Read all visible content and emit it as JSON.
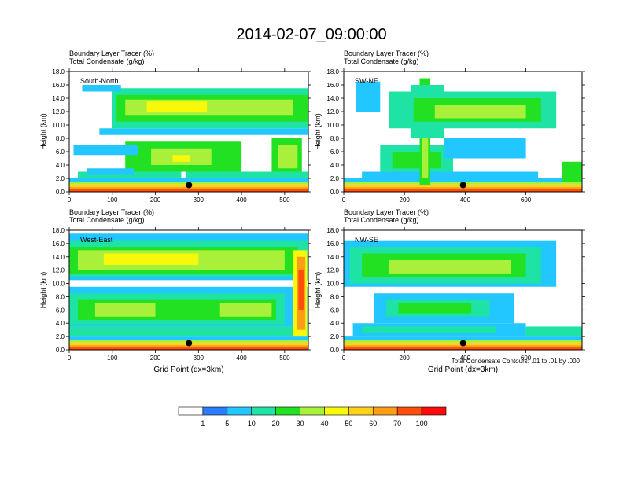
{
  "title": "2014-02-07_09:00:00",
  "chart_data": [
    {
      "type": "heatmap",
      "panel": "South-North",
      "line1": "Boundary Layer Tracer    (%)",
      "line2": "Total Condensate    (g/kg)",
      "ylabel": "Height (km)",
      "xlabel": "",
      "xlim": [
        0,
        555
      ],
      "ylim": [
        0,
        18
      ],
      "xticks": [
        "0",
        "100",
        "200",
        "300",
        "400",
        "500"
      ],
      "xtick_values": [
        0,
        100,
        200,
        300,
        400,
        500
      ],
      "yticks": [
        "0.0",
        "2.0",
        "4.0",
        "6.0",
        "8.0",
        "10.0",
        "12.0",
        "14.0",
        "16.0",
        "18.0"
      ],
      "marker": {
        "x": 278,
        "y": 1.0
      },
      "bands": [
        {
          "x0": 0,
          "x1": 555,
          "y0": 0.0,
          "y1": 0.35,
          "level": 9
        },
        {
          "x0": 0,
          "x1": 555,
          "y0": 0.35,
          "y1": 0.7,
          "level": 8
        },
        {
          "x0": 0,
          "x1": 555,
          "y0": 0.7,
          "y1": 1.1,
          "level": 7
        },
        {
          "x0": 0,
          "x1": 555,
          "y0": 1.1,
          "y1": 1.5,
          "level": 5
        },
        {
          "x0": 0,
          "x1": 555,
          "y0": 1.5,
          "y1": 2.0,
          "level": 2
        },
        {
          "x0": 20,
          "x1": 260,
          "y0": 2.0,
          "y1": 3.0,
          "level": 3
        },
        {
          "x0": 270,
          "x1": 555,
          "y0": 2.0,
          "y1": 3.0,
          "level": 3
        },
        {
          "x0": 130,
          "x1": 400,
          "y0": 3.0,
          "y1": 7.5,
          "level": 4
        },
        {
          "x0": 190,
          "x1": 330,
          "y0": 4.0,
          "y1": 6.5,
          "level": 5
        },
        {
          "x0": 240,
          "x1": 280,
          "y0": 4.5,
          "y1": 5.5,
          "level": 6
        },
        {
          "x0": 470,
          "x1": 540,
          "y0": 3.0,
          "y1": 8.0,
          "level": 4
        },
        {
          "x0": 485,
          "x1": 530,
          "y0": 3.5,
          "y1": 7.0,
          "level": 5
        },
        {
          "x0": 10,
          "x1": 160,
          "y0": 5.5,
          "y1": 7.0,
          "level": 2
        },
        {
          "x0": 40,
          "x1": 150,
          "y0": 2.5,
          "y1": 3.5,
          "level": 2
        },
        {
          "x0": 70,
          "x1": 555,
          "y0": 8.5,
          "y1": 9.5,
          "level": 2
        },
        {
          "x0": 100,
          "x1": 555,
          "y0": 9.5,
          "y1": 15.5,
          "level": 3
        },
        {
          "x0": 110,
          "x1": 555,
          "y0": 10.5,
          "y1": 14.5,
          "level": 4
        },
        {
          "x0": 130,
          "x1": 520,
          "y0": 11.5,
          "y1": 13.8,
          "level": 5
        },
        {
          "x0": 180,
          "x1": 320,
          "y0": 12.0,
          "y1": 13.5,
          "level": 6
        },
        {
          "x0": 30,
          "x1": 120,
          "y0": 15.0,
          "y1": 16.0,
          "level": 2
        }
      ]
    },
    {
      "type": "heatmap",
      "panel": "SW-NE",
      "line1": "Boundary Layer Tracer    (%)",
      "line2": "Total Condensate    (g/kg)",
      "ylabel": "Height (km)",
      "xlabel": "",
      "xlim": [
        0,
        785
      ],
      "ylim": [
        0,
        18
      ],
      "xticks": [
        "0",
        "200",
        "400",
        "600"
      ],
      "xtick_values": [
        0,
        200,
        400,
        600
      ],
      "yticks": [
        "0.0",
        "2.0",
        "4.0",
        "6.0",
        "8.0",
        "10.0",
        "12.0",
        "14.0",
        "16.0",
        "18.0"
      ],
      "marker": {
        "x": 393,
        "y": 1.0
      },
      "bands": [
        {
          "x0": 0,
          "x1": 785,
          "y0": 0.0,
          "y1": 0.35,
          "level": 9
        },
        {
          "x0": 0,
          "x1": 785,
          "y0": 0.35,
          "y1": 0.7,
          "level": 8
        },
        {
          "x0": 0,
          "x1": 785,
          "y0": 0.7,
          "y1": 1.1,
          "level": 7
        },
        {
          "x0": 0,
          "x1": 785,
          "y0": 1.1,
          "y1": 1.5,
          "level": 5
        },
        {
          "x0": 0,
          "x1": 785,
          "y0": 1.5,
          "y1": 2.0,
          "level": 2
        },
        {
          "x0": 60,
          "x1": 640,
          "y0": 2.0,
          "y1": 3.0,
          "level": 2
        },
        {
          "x0": 120,
          "x1": 360,
          "y0": 3.0,
          "y1": 7.0,
          "level": 3
        },
        {
          "x0": 160,
          "x1": 320,
          "y0": 3.5,
          "y1": 6.0,
          "level": 4
        },
        {
          "x0": 330,
          "x1": 600,
          "y0": 5.0,
          "y1": 8.0,
          "level": 2
        },
        {
          "x0": 250,
          "x1": 285,
          "y0": 1.0,
          "y1": 17.0,
          "level": 4
        },
        {
          "x0": 258,
          "x1": 278,
          "y0": 2.0,
          "y1": 16.0,
          "level": 5
        },
        {
          "x0": 220,
          "x1": 330,
          "y0": 8.0,
          "y1": 16.0,
          "level": 3
        },
        {
          "x0": 150,
          "x1": 700,
          "y0": 9.5,
          "y1": 15.0,
          "level": 3
        },
        {
          "x0": 230,
          "x1": 650,
          "y0": 10.5,
          "y1": 14.0,
          "level": 4
        },
        {
          "x0": 300,
          "x1": 600,
          "y0": 11.0,
          "y1": 13.0,
          "level": 5
        },
        {
          "x0": 40,
          "x1": 120,
          "y0": 12.0,
          "y1": 16.5,
          "level": 2
        },
        {
          "x0": 720,
          "x1": 785,
          "y0": 1.5,
          "y1": 4.5,
          "level": 4
        }
      ]
    },
    {
      "type": "heatmap",
      "panel": "West-East",
      "line1": "Boundary Layer Tracer    (%)",
      "line2": "Total Condensate    (g/kg)",
      "ylabel": "Height (km)",
      "xlabel": "Grid Point (dx=3km)",
      "xlim": [
        0,
        555
      ],
      "ylim": [
        0,
        18
      ],
      "xticks": [
        "0",
        "100",
        "200",
        "300",
        "400",
        "500"
      ],
      "xtick_values": [
        0,
        100,
        200,
        300,
        400,
        500
      ],
      "yticks": [
        "0.0",
        "2.0",
        "4.0",
        "6.0",
        "8.0",
        "10.0",
        "12.0",
        "14.0",
        "16.0",
        "18.0"
      ],
      "marker": {
        "x": 278,
        "y": 1.0
      },
      "bands": [
        {
          "x0": 0,
          "x1": 555,
          "y0": 0.0,
          "y1": 0.35,
          "level": 9
        },
        {
          "x0": 0,
          "x1": 555,
          "y0": 0.35,
          "y1": 0.7,
          "level": 8
        },
        {
          "x0": 0,
          "x1": 555,
          "y0": 0.7,
          "y1": 1.1,
          "level": 7
        },
        {
          "x0": 0,
          "x1": 555,
          "y0": 1.1,
          "y1": 1.5,
          "level": 5
        },
        {
          "x0": 0,
          "x1": 555,
          "y0": 1.5,
          "y1": 2.0,
          "level": 2
        },
        {
          "x0": 0,
          "x1": 555,
          "y0": 2.0,
          "y1": 3.5,
          "level": 3
        },
        {
          "x0": 0,
          "x1": 555,
          "y0": 3.5,
          "y1": 9.5,
          "level": 2
        },
        {
          "x0": 0,
          "x1": 500,
          "y0": 3.8,
          "y1": 8.5,
          "level": 3
        },
        {
          "x0": 20,
          "x1": 480,
          "y0": 4.5,
          "y1": 7.5,
          "level": 4
        },
        {
          "x0": 60,
          "x1": 200,
          "y0": 5.0,
          "y1": 7.0,
          "level": 5
        },
        {
          "x0": 350,
          "x1": 470,
          "y0": 5.0,
          "y1": 7.0,
          "level": 5
        },
        {
          "x0": 0,
          "x1": 555,
          "y0": 10.5,
          "y1": 17.5,
          "level": 2
        },
        {
          "x0": 0,
          "x1": 555,
          "y0": 11.0,
          "y1": 16.5,
          "level": 3
        },
        {
          "x0": 0,
          "x1": 530,
          "y0": 11.5,
          "y1": 15.5,
          "level": 4
        },
        {
          "x0": 20,
          "x1": 500,
          "y0": 12.0,
          "y1": 15.0,
          "level": 5
        },
        {
          "x0": 80,
          "x1": 300,
          "y0": 12.8,
          "y1": 14.5,
          "level": 6
        },
        {
          "x0": 520,
          "x1": 552,
          "y0": 2.0,
          "y1": 15.0,
          "level": 6
        },
        {
          "x0": 528,
          "x1": 548,
          "y0": 3.0,
          "y1": 14.0,
          "level": 8
        },
        {
          "x0": 532,
          "x1": 544,
          "y0": 6.0,
          "y1": 12.0,
          "level": 9
        }
      ]
    },
    {
      "type": "heatmap",
      "panel": "NW-SE",
      "line1": "Boundary Layer Tracer    (%)",
      "line2": "Total Condensate    (g/kg)",
      "ylabel": "Height (km)",
      "xlabel": "Grid Point (dx=3km)",
      "xlim": [
        0,
        785
      ],
      "ylim": [
        0,
        18
      ],
      "xticks": [
        "0",
        "200",
        "400",
        "600"
      ],
      "xtick_values": [
        0,
        200,
        400,
        600
      ],
      "yticks": [
        "0.0",
        "2.0",
        "4.0",
        "6.0",
        "8.0",
        "10.0",
        "12.0",
        "14.0",
        "16.0",
        "18.0"
      ],
      "marker": {
        "x": 393,
        "y": 1.0
      },
      "bands": [
        {
          "x0": 0,
          "x1": 785,
          "y0": 0.0,
          "y1": 0.35,
          "level": 9
        },
        {
          "x0": 0,
          "x1": 785,
          "y0": 0.35,
          "y1": 0.7,
          "level": 8
        },
        {
          "x0": 0,
          "x1": 785,
          "y0": 0.7,
          "y1": 1.1,
          "level": 7
        },
        {
          "x0": 0,
          "x1": 785,
          "y0": 1.1,
          "y1": 1.5,
          "level": 5
        },
        {
          "x0": 0,
          "x1": 785,
          "y0": 1.5,
          "y1": 2.0,
          "level": 2
        },
        {
          "x0": 30,
          "x1": 600,
          "y0": 2.0,
          "y1": 4.0,
          "level": 2
        },
        {
          "x0": 60,
          "x1": 500,
          "y0": 2.5,
          "y1": 3.5,
          "level": 3
        },
        {
          "x0": 100,
          "x1": 560,
          "y0": 4.0,
          "y1": 8.5,
          "level": 2
        },
        {
          "x0": 140,
          "x1": 480,
          "y0": 5.0,
          "y1": 7.5,
          "level": 3
        },
        {
          "x0": 180,
          "x1": 420,
          "y0": 5.5,
          "y1": 7.0,
          "level": 4
        },
        {
          "x0": 0,
          "x1": 700,
          "y0": 9.5,
          "y1": 16.5,
          "level": 2
        },
        {
          "x0": 20,
          "x1": 650,
          "y0": 10.0,
          "y1": 15.5,
          "level": 3
        },
        {
          "x0": 60,
          "x1": 600,
          "y0": 11.0,
          "y1": 14.5,
          "level": 4
        },
        {
          "x0": 150,
          "x1": 550,
          "y0": 11.5,
          "y1": 13.5,
          "level": 5
        },
        {
          "x0": 600,
          "x1": 785,
          "y0": 2.0,
          "y1": 3.5,
          "level": 3
        }
      ]
    }
  ],
  "colorbar": {
    "labels": [
      "1",
      "5",
      "10",
      "20",
      "30",
      "40",
      "50",
      "60",
      "70",
      "100"
    ],
    "colors": [
      "#ffffff",
      "#2b7cff",
      "#23c7ff",
      "#1ee3a5",
      "#22e022",
      "#a8f03a",
      "#f8f80a",
      "#ffd21a",
      "#ff9e14",
      "#ff4d0a",
      "#ff0a0a"
    ]
  },
  "contour_note": "Total Condensate Contours: .01 to .01 by .000"
}
